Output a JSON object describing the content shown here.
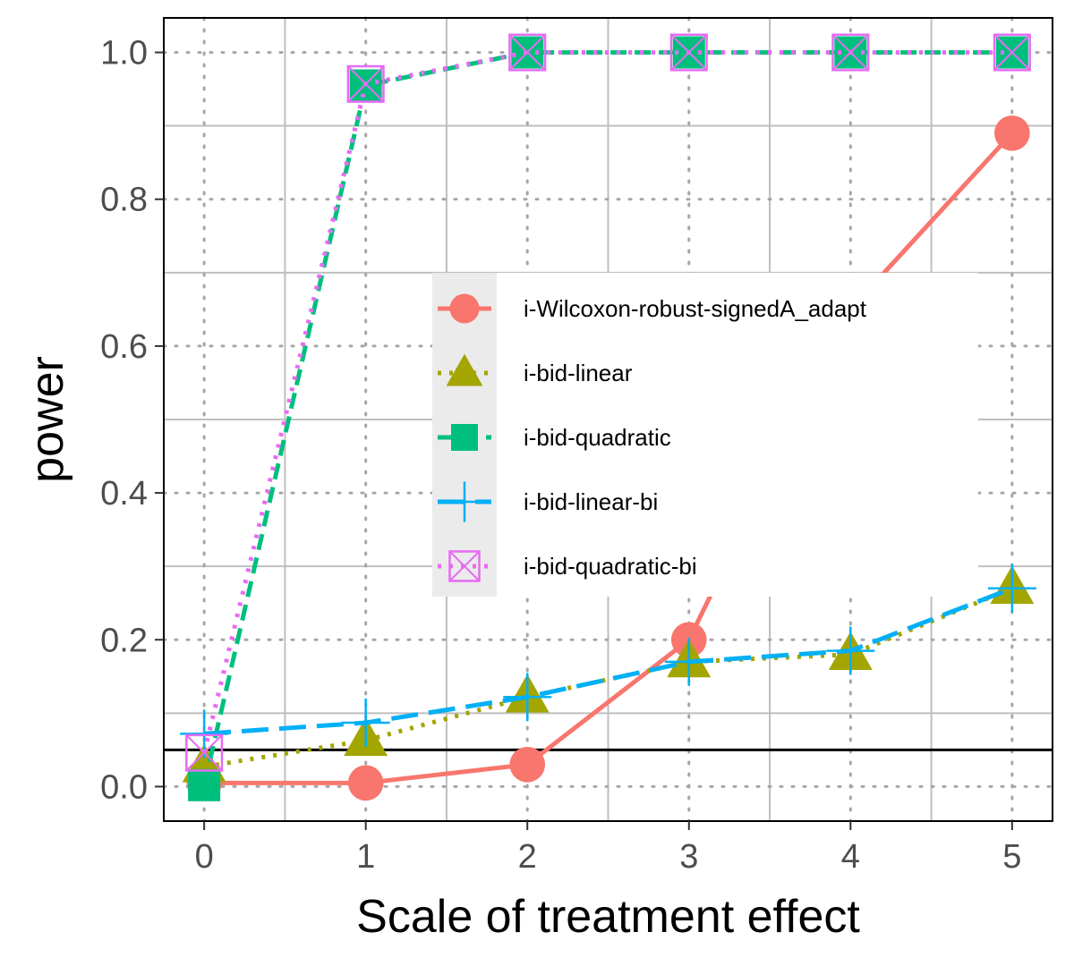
{
  "chart_data": {
    "type": "line",
    "xlabel": "Scale of treatment effect",
    "ylabel": "power",
    "xlim": [
      -0.25,
      5.25
    ],
    "ylim": [
      -0.047,
      1.047
    ],
    "x_ticks": [
      0,
      1,
      2,
      3,
      4,
      5
    ],
    "x_tick_labels": [
      "0",
      "1",
      "2",
      "3",
      "4",
      "5"
    ],
    "y_ticks": [
      0.0,
      0.2,
      0.4,
      0.6,
      0.8,
      1.0
    ],
    "y_tick_labels": [
      "0.0",
      "0.2",
      "0.4",
      "0.6",
      "0.8",
      "1.0"
    ],
    "grid": true,
    "reference_line": {
      "y": 0.05,
      "color": "#000000"
    },
    "legend_position": "center-right",
    "x": [
      0,
      1,
      2,
      3,
      4,
      5
    ],
    "series": [
      {
        "name": "i-Wilcoxon-robust-signedA_adapt",
        "values": [
          0.005,
          0.005,
          0.03,
          0.2,
          0.65,
          0.89
        ],
        "color": "#F8766D",
        "marker": "circle",
        "dash": "solid"
      },
      {
        "name": "i-bid-linear",
        "values": [
          0.027,
          0.063,
          0.122,
          0.17,
          0.18,
          0.27
        ],
        "color": "#A3A500",
        "marker": "triangle",
        "dash": "dotted"
      },
      {
        "name": "i-bid-quadratic",
        "values": [
          0.002,
          0.955,
          1.0,
          1.0,
          1.0,
          1.0
        ],
        "color": "#00BF7D",
        "marker": "square",
        "dash": "dashed"
      },
      {
        "name": "i-bid-linear-bi",
        "values": [
          0.072,
          0.087,
          0.122,
          0.17,
          0.185,
          0.27
        ],
        "color": "#00B0F6",
        "marker": "plus",
        "dash": "longdash"
      },
      {
        "name": "i-bid-quadratic-bi",
        "values": [
          0.046,
          0.957,
          1.0,
          1.0,
          1.0,
          1.0
        ],
        "color": "#E76BF3",
        "marker": "square-cross",
        "dash": "dotted"
      }
    ]
  }
}
